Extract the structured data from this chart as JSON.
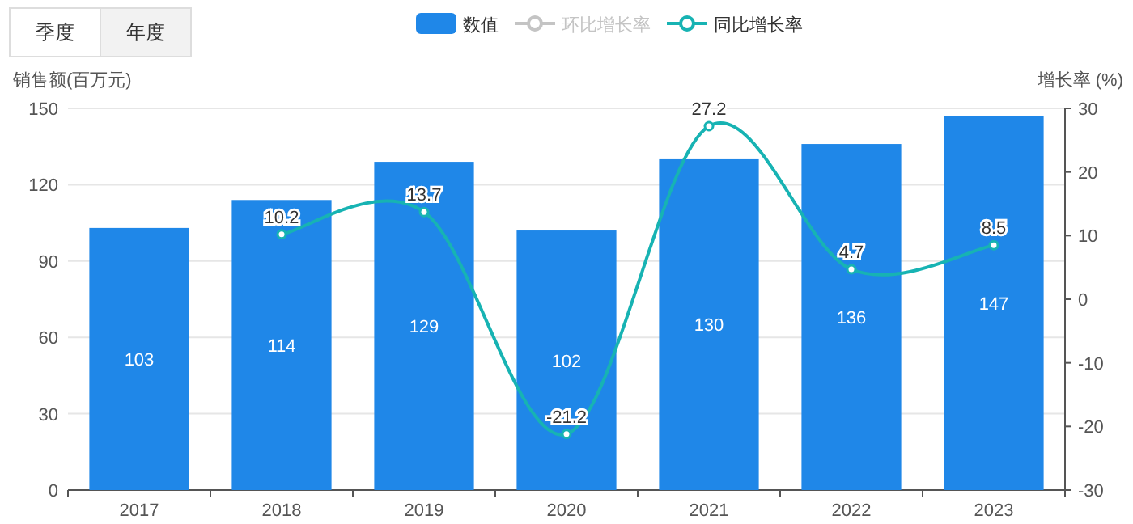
{
  "chart_data": {
    "type": "bar",
    "categories": [
      "2017",
      "2018",
      "2019",
      "2020",
      "2021",
      "2022",
      "2023"
    ],
    "ylabel": "销售额(百万元)",
    "y2label": "增长率 (%)",
    "ylim": [
      0,
      150
    ],
    "yticks": [
      0,
      30,
      60,
      90,
      120,
      150
    ],
    "y2lim": [
      -30,
      30
    ],
    "y2ticks": [
      -30,
      -20,
      -10,
      0,
      10,
      20,
      30
    ],
    "grid": "y",
    "legend": "top",
    "data_labels": true,
    "marker": "circle",
    "annotations": [
      "季度",
      "年度"
    ],
    "series": [
      {
        "name": "数值",
        "color": "#1f87e8",
        "values": [
          103,
          114,
          129,
          102,
          130,
          136,
          147
        ]
      },
      {
        "name": "环比增长率",
        "type": "line",
        "axis": "y2",
        "color": "#c4c4c4",
        "values": [
          null,
          null,
          null,
          null,
          null,
          null,
          null
        ]
      },
      {
        "name": "同比增长率",
        "type": "line",
        "axis": "y2",
        "color": "#17b3b3",
        "values": [
          null,
          10.2,
          13.7,
          -21.2,
          27.2,
          4.7,
          8.5
        ]
      }
    ]
  }
}
